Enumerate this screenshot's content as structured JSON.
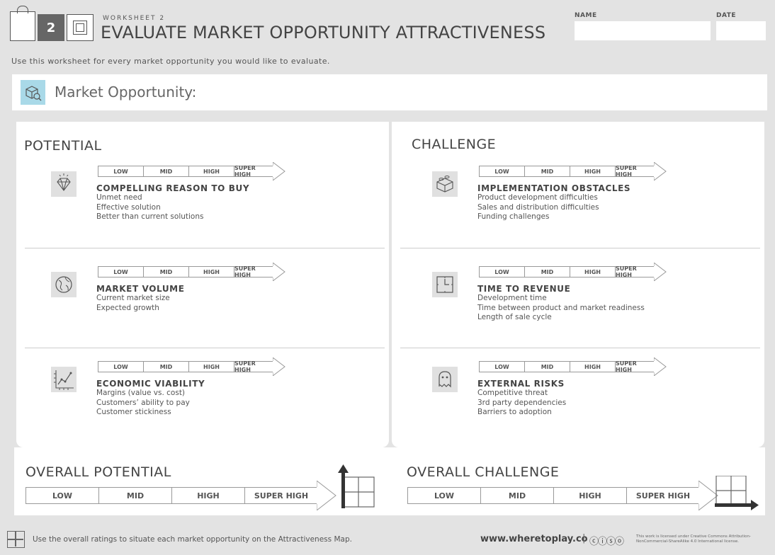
{
  "header": {
    "worksheet_number": "2",
    "kicker": "WORKSHEET 2",
    "title": "EVALUATE MARKET OPPORTUNITY ATTRACTIVENESS",
    "name_label": "NAME",
    "date_label": "DATE",
    "name_value": "",
    "date_value": ""
  },
  "intro": "Use this worksheet for every market opportunity you would like to evaluate.",
  "opportunity": {
    "label": "Market Opportunity:",
    "value": ""
  },
  "scale_labels": [
    "LOW",
    "MID",
    "HIGH",
    "SUPER HIGH"
  ],
  "potential": {
    "title": "POTENTIAL",
    "criteria": [
      {
        "name": "COMPELLING REASON TO BUY",
        "icon": "diamond-icon",
        "lines": [
          "Unmet need",
          "Effective solution",
          "Better than current solutions"
        ]
      },
      {
        "name": "MARKET VOLUME",
        "icon": "globe-icon",
        "lines": [
          "Current market size",
          "Expected growth"
        ]
      },
      {
        "name": "ECONOMIC VIABILITY",
        "icon": "line-chart-icon",
        "lines": [
          "Margins (value vs. cost)",
          "Customers’ ability to pay",
          "Customer stickiness"
        ]
      }
    ]
  },
  "challenge": {
    "title": "CHALLENGE",
    "criteria": [
      {
        "name": "IMPLEMENTATION OBSTACLES",
        "icon": "building-blocks-icon",
        "lines": [
          "Product development difficulties",
          "Sales and distribution difficulties",
          "Funding challenges"
        ]
      },
      {
        "name": "TIME TO REVENUE",
        "icon": "clock-icon",
        "lines": [
          "Development time",
          "Time between product and market readiness",
          "Length of sale cycle"
        ]
      },
      {
        "name": "EXTERNAL RISKS",
        "icon": "ghost-icon",
        "lines": [
          "Competitive threat",
          "3rd party dependencies",
          "Barriers to adoption"
        ]
      }
    ]
  },
  "overall_potential": {
    "title": "OVERALL POTENTIAL"
  },
  "overall_challenge": {
    "title": "OVERALL CHALLENGE"
  },
  "footer": {
    "instruction": "Use the overall ratings to situate each market opportunity on the Attractiveness Map.",
    "website": "www.wheretoplay.co",
    "cc_symbols": "ⓒⓘⓢⓞ",
    "license": "This work is licensed under Creative Commons Attribution-NonCommercial-ShareAlike 4.0 International license."
  },
  "colors": {
    "background": "#e3e3e3",
    "panel": "#ffffff",
    "accent_icon_bg": "#a9d9e8",
    "text": "#444444"
  }
}
